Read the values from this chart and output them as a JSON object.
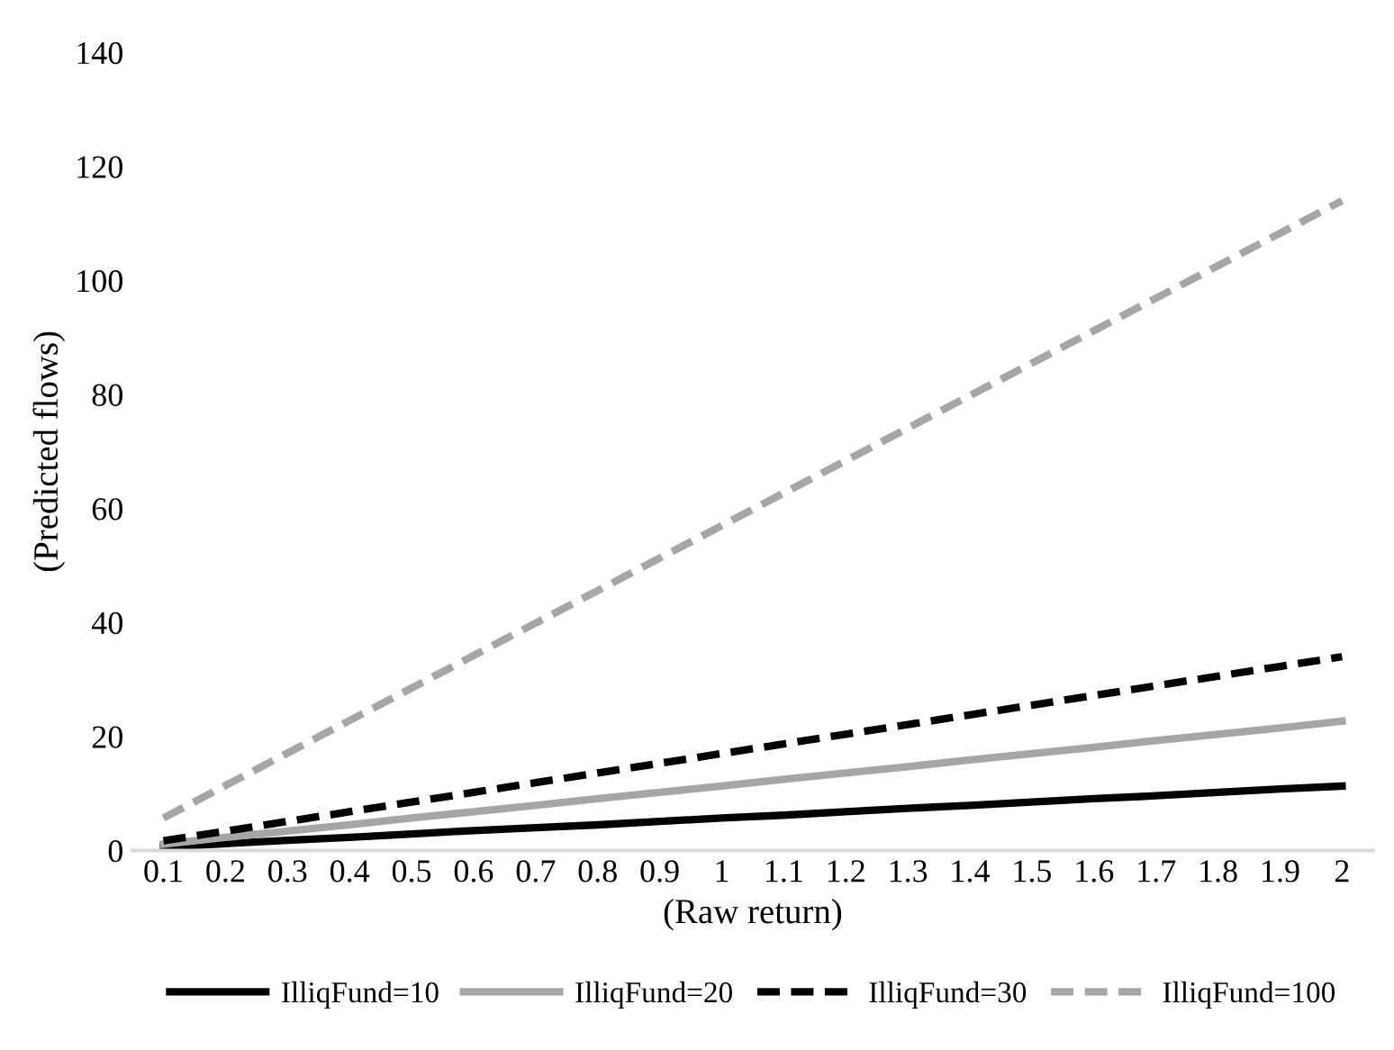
{
  "chart_data": {
    "type": "line",
    "xlabel": "(Raw return)",
    "ylabel": "(Predicted flows)",
    "categories": [
      "0.1",
      "0.2",
      "0.3",
      "0.4",
      "0.5",
      "0.6",
      "0.7",
      "0.8",
      "0.9",
      "1",
      "1.1",
      "1.2",
      "1.3",
      "1.4",
      "1.5",
      "1.6",
      "1.7",
      "1.8",
      "1.9",
      "2"
    ],
    "series": [
      {
        "name": "IlliqFund=10",
        "color": "#000000",
        "line_style": "solid",
        "values": [
          0.6,
          1.2,
          1.8,
          2.3,
          2.9,
          3.5,
          4.0,
          4.5,
          5.1,
          5.7,
          6.2,
          6.8,
          7.4,
          7.9,
          8.5,
          9.1,
          9.6,
          10.2,
          10.8,
          11.3
        ]
      },
      {
        "name": "IlliqFund=20",
        "color": "#a6a6a6",
        "line_style": "solid",
        "values": [
          1.1,
          2.3,
          3.4,
          4.5,
          5.7,
          6.8,
          7.9,
          9.1,
          10.2,
          11.3,
          12.5,
          13.6,
          14.7,
          15.9,
          17.0,
          18.1,
          19.3,
          20.4,
          21.5,
          22.7
        ]
      },
      {
        "name": "IlliqFund=30",
        "color": "#000000",
        "line_style": "dashed",
        "values": [
          1.7,
          3.4,
          5.1,
          6.8,
          8.5,
          10.2,
          11.9,
          13.6,
          15.3,
          17.0,
          18.7,
          20.4,
          22.1,
          23.8,
          25.5,
          27.2,
          28.9,
          30.6,
          32.3,
          34.0
        ]
      },
      {
        "name": "IlliqFund=100",
        "color": "#a6a6a6",
        "line_style": "dashed",
        "values": [
          5.7,
          11.4,
          17.1,
          22.8,
          28.5,
          34.2,
          39.9,
          45.6,
          51.3,
          57.0,
          62.7,
          68.4,
          74.1,
          79.8,
          85.5,
          91.2,
          96.9,
          102.6,
          108.3,
          114.0
        ]
      }
    ],
    "ylim": [
      0,
      140
    ],
    "yticks": [
      0,
      20,
      40,
      60,
      80,
      100,
      120,
      140
    ],
    "grid": false,
    "legend": "bottom",
    "marker": "none"
  }
}
